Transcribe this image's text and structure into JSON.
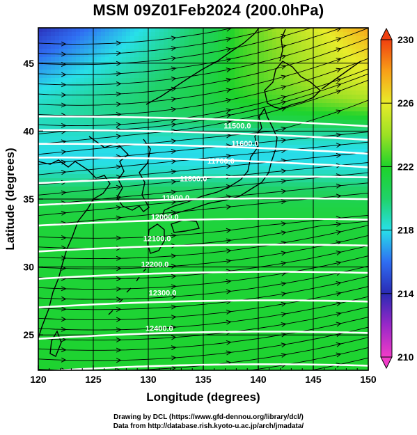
{
  "title": "MSM 09Z01Feb2024 (200.0hPa)",
  "x_axis": {
    "label": "Longitude (degrees)",
    "range": [
      120,
      150
    ],
    "ticks": [
      120,
      125,
      130,
      135,
      140,
      145,
      150
    ]
  },
  "y_axis": {
    "label": "Latitude  (degrees)",
    "range": [
      22.4,
      47.6
    ],
    "ticks": [
      25,
      30,
      35,
      40,
      45
    ]
  },
  "colorbar": {
    "range": [
      210,
      230
    ],
    "ticks": [
      210,
      214,
      218,
      222,
      226,
      230
    ],
    "stops": [
      {
        "value": 210,
        "color": "#f03cc8"
      },
      {
        "value": 212,
        "color": "#9a28c8"
      },
      {
        "value": 214,
        "color": "#2a2ab4"
      },
      {
        "value": 216,
        "color": "#2f6ef2"
      },
      {
        "value": 218,
        "color": "#28e0e8"
      },
      {
        "value": 220,
        "color": "#20d268"
      },
      {
        "value": 222,
        "color": "#1ed32a"
      },
      {
        "value": 224,
        "color": "#9ce024"
      },
      {
        "value": 226,
        "color": "#e8ec2a"
      },
      {
        "value": 228,
        "color": "#f8a018"
      },
      {
        "value": 230,
        "color": "#f04010"
      }
    ]
  },
  "contours": {
    "color": "#ffffff",
    "labels": [
      {
        "text": "11500.0",
        "lon": 138.1,
        "lat": 40.2
      },
      {
        "text": "11600.0",
        "lon": 138.8,
        "lat": 38.9
      },
      {
        "text": "11700.0",
        "lon": 136.6,
        "lat": 37.6
      },
      {
        "text": "11800.0",
        "lon": 134.1,
        "lat": 36.3
      },
      {
        "text": "11900.0",
        "lon": 132.5,
        "lat": 34.9
      },
      {
        "text": "12000.0",
        "lon": 131.5,
        "lat": 33.5
      },
      {
        "text": "12100.0",
        "lon": 130.8,
        "lat": 31.9
      },
      {
        "text": "12200.0",
        "lon": 130.6,
        "lat": 30.0
      },
      {
        "text": "12300.0",
        "lon": 131.3,
        "lat": 27.9
      },
      {
        "text": "12400.0",
        "lon": 131.0,
        "lat": 25.3
      }
    ]
  },
  "credits": {
    "line1": "Drawing by DCL (https://www.gfd-dennou.org/library/dcl/)",
    "line2": "Data from http://database.rish.kyoto-u.ac.jp/arch/jmadata/"
  }
}
